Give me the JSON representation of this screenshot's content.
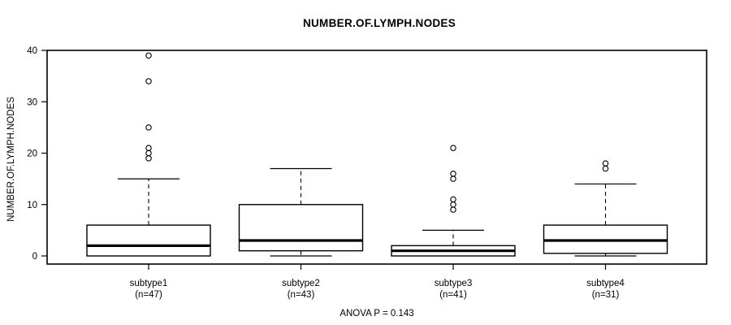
{
  "figure": {
    "title": "NUMBER.OF.LYMPH.NODES",
    "y_axis_label": "NUMBER.OF.LYMPH.NODES",
    "annotation": "ANOVA P = 0.143"
  },
  "chart_data": {
    "type": "boxplot",
    "title": "NUMBER.OF.LYMPH.NODES",
    "ylabel": "NUMBER.OF.LYMPH.NODES",
    "xlabel": "",
    "ylim": [
      0,
      40
    ],
    "yticks": [
      0,
      10,
      20,
      30,
      40
    ],
    "grid": false,
    "legend": "none",
    "annotation": "ANOVA P = 0.143",
    "ink_color": "#000000",
    "background_color": "#ffffff",
    "groups": [
      {
        "label": "subtype1",
        "sublabel": "(n=47)",
        "n": 47,
        "min": 0,
        "q1": 0,
        "median": 2,
        "q3": 6,
        "whisker_high": 15,
        "outliers": [
          19,
          20,
          21,
          25,
          34,
          39
        ]
      },
      {
        "label": "subtype2",
        "sublabel": "(n=43)",
        "n": 43,
        "min": 0,
        "q1": 1,
        "median": 3,
        "q3": 10,
        "whisker_high": 17,
        "outliers": []
      },
      {
        "label": "subtype3",
        "sublabel": "(n=41)",
        "n": 41,
        "min": 0,
        "q1": 0,
        "median": 1,
        "q3": 2,
        "whisker_high": 5,
        "outliers": [
          9,
          10,
          11,
          15,
          16,
          21
        ]
      },
      {
        "label": "subtype4",
        "sublabel": "(n=31)",
        "n": 31,
        "min": 0,
        "q1": 0.5,
        "median": 3,
        "q3": 6,
        "whisker_high": 14,
        "outliers": [
          17,
          18
        ]
      }
    ]
  }
}
